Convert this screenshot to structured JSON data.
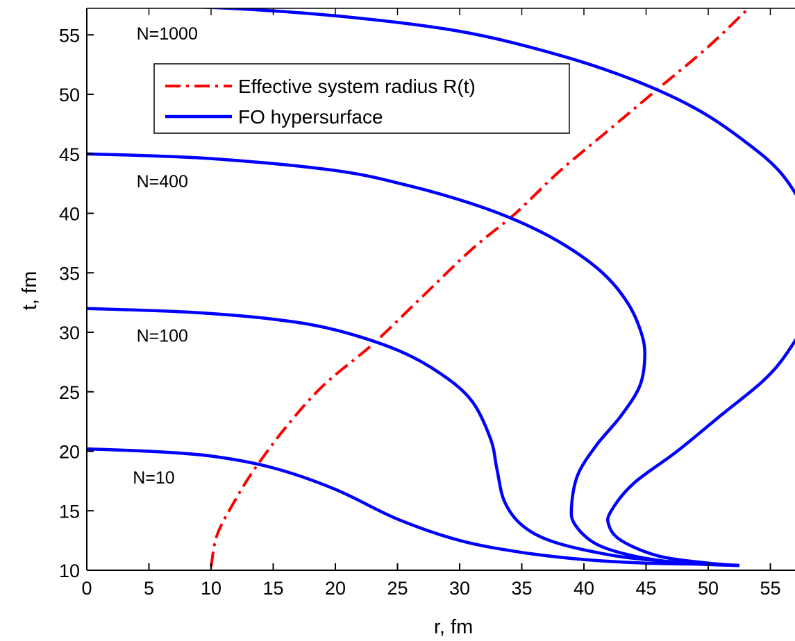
{
  "chart_data": {
    "type": "line",
    "title": "",
    "xlabel": "r, fm",
    "ylabel": "t, fm",
    "xlim": [
      0,
      58
    ],
    "ylim": [
      10,
      57.5
    ],
    "xticks": [
      0,
      5,
      10,
      15,
      20,
      25,
      30,
      35,
      40,
      45,
      50,
      55
    ],
    "yticks": [
      10,
      15,
      20,
      25,
      30,
      35,
      40,
      45,
      50,
      55
    ],
    "grid": false,
    "legend": {
      "position": "top-left",
      "entries": [
        "Effective system radius R(t)",
        "FO hypersurface"
      ]
    },
    "colors": {
      "radius": "#ff0000",
      "fo": "#0000ff"
    },
    "series": [
      {
        "name": "Effective system radius R(t)",
        "style": "dash-dot",
        "points": [
          [
            10,
            10.3
          ],
          [
            10.5,
            13
          ],
          [
            12,
            16
          ],
          [
            13.5,
            18.5
          ],
          [
            16,
            22
          ],
          [
            19,
            25.5
          ],
          [
            23,
            29
          ],
          [
            27,
            33
          ],
          [
            31,
            37
          ],
          [
            34.5,
            40
          ],
          [
            38,
            43.5
          ],
          [
            42,
            47
          ],
          [
            46,
            50.5
          ],
          [
            50,
            54
          ],
          [
            53.5,
            57.5
          ]
        ]
      },
      {
        "name": "FO hypersurface",
        "label": "N=10",
        "points": [
          [
            0,
            20.2
          ],
          [
            5,
            20.0
          ],
          [
            10,
            19.6
          ],
          [
            15,
            18.6
          ],
          [
            20,
            16.8
          ],
          [
            25,
            14.3
          ],
          [
            30,
            12.5
          ],
          [
            35,
            11.5
          ],
          [
            40,
            10.9
          ],
          [
            45,
            10.6
          ],
          [
            50,
            10.5
          ],
          [
            52.5,
            10.4
          ]
        ]
      },
      {
        "name": "FO hypersurface",
        "label": "N=100",
        "points": [
          [
            0,
            32
          ],
          [
            8,
            31.7
          ],
          [
            15,
            31.1
          ],
          [
            20,
            30.2
          ],
          [
            25,
            28.5
          ],
          [
            28.5,
            26.5
          ],
          [
            31,
            24.2
          ],
          [
            32.5,
            21
          ],
          [
            33,
            18.5
          ],
          [
            33.6,
            15.8
          ],
          [
            35,
            13.8
          ],
          [
            37.5,
            12.4
          ],
          [
            42,
            11.3
          ],
          [
            46,
            10.8
          ],
          [
            50,
            10.5
          ],
          [
            52.5,
            10.4
          ]
        ]
      },
      {
        "name": "FO hypersurface",
        "label": "N=400",
        "points": [
          [
            0,
            45
          ],
          [
            10,
            44.6
          ],
          [
            20,
            43.6
          ],
          [
            26,
            42.3
          ],
          [
            31,
            40.8
          ],
          [
            35,
            39.2
          ],
          [
            38.5,
            37.3
          ],
          [
            41.5,
            35
          ],
          [
            43.5,
            32.5
          ],
          [
            44.6,
            30
          ],
          [
            44.9,
            28
          ],
          [
            44.5,
            25.5
          ],
          [
            43,
            23
          ],
          [
            41,
            20.5
          ],
          [
            39.5,
            18
          ],
          [
            39,
            15.3
          ],
          [
            39.3,
            13.8
          ],
          [
            41,
            12.2
          ],
          [
            44,
            11.2
          ],
          [
            48,
            10.6
          ],
          [
            52.5,
            10.4
          ]
        ]
      },
      {
        "name": "FO hypersurface",
        "label": "N=1000",
        "points": [
          [
            0,
            57.5
          ],
          [
            10,
            57.3
          ],
          [
            20,
            56.6
          ],
          [
            30,
            55.3
          ],
          [
            38,
            53.3
          ],
          [
            44,
            51.2
          ],
          [
            49,
            48.8
          ],
          [
            53,
            46
          ],
          [
            56,
            43.2
          ],
          [
            58,
            39.5
          ],
          [
            58.5,
            35.5
          ],
          [
            58,
            31.5
          ],
          [
            56.5,
            28.5
          ],
          [
            54.5,
            26
          ],
          [
            51,
            23
          ],
          [
            47.5,
            20
          ],
          [
            44,
            17.3
          ],
          [
            42.2,
            15
          ],
          [
            42,
            13.8
          ],
          [
            43,
            12.5
          ],
          [
            46,
            11.2
          ],
          [
            50,
            10.6
          ],
          [
            52.5,
            10.4
          ]
        ]
      }
    ]
  }
}
